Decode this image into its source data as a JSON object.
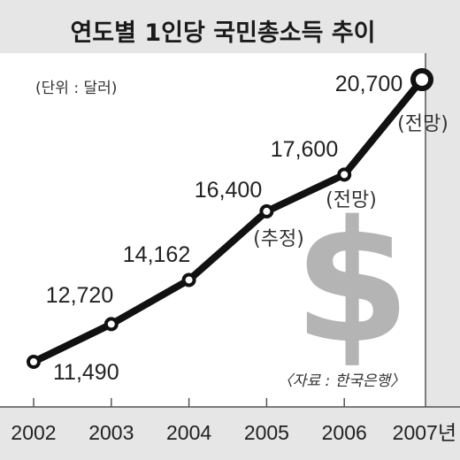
{
  "chart_data": {
    "type": "line",
    "title": "연도별 1인당 국민총소득 추이",
    "unit_label": "(단위 : 달러)",
    "x": [
      "2002",
      "2003",
      "2004",
      "2005",
      "2006",
      "2007년"
    ],
    "values": [
      11490,
      12720,
      14162,
      16400,
      17600,
      20700
    ],
    "value_labels": [
      "11,490",
      "12,720",
      "14,162",
      "16,400",
      "17,600",
      "20,700"
    ],
    "notes": [
      "",
      "",
      "",
      "(추정)",
      "(전망)",
      "(전망)"
    ],
    "source": "〈자료 : 한국은행〉",
    "decoration": "$",
    "line_color": "#111111",
    "marker_fill": "#ffffff",
    "background": "#e6e6e6",
    "grid": false,
    "legend": "none"
  }
}
